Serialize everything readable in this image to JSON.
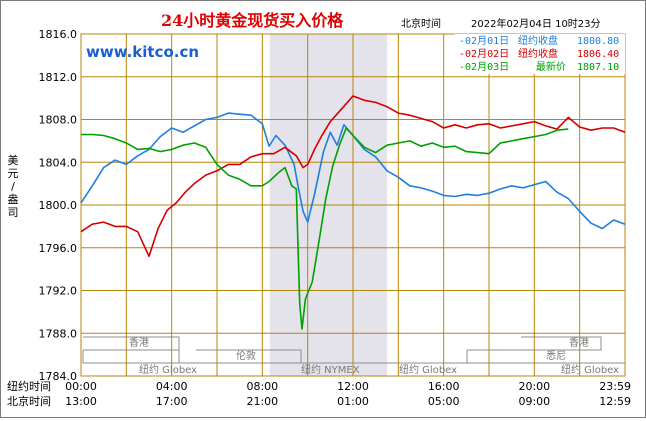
{
  "header": {
    "title": "24小时黄金现货买入价格",
    "beijing_time_label": "北京时间",
    "datetime": "2022年02月04日 10时23分"
  },
  "watermark": "www.kitco.cn",
  "y_axis_unit": [
    "美",
    "元",
    "/",
    "盎",
    "司"
  ],
  "colors": {
    "series_blue": "#1e7fe0",
    "series_red": "#d40000",
    "series_green": "#00a000",
    "grid": "#b8860b",
    "title": "#e00000",
    "nymex_band": "#e4e2ea",
    "market_lines": "#8c8c8c"
  },
  "legend": [
    {
      "date": "02月01日",
      "label": "纽约收盘",
      "value": "1800.80"
    },
    {
      "date": "02月02日",
      "label": "纽约收盘",
      "value": "1806.40"
    },
    {
      "date": "02月03日",
      "label": "最新价",
      "value": "1807.10"
    }
  ],
  "markets": [
    {
      "name": "香港"
    },
    {
      "name": "纽约 Globex"
    },
    {
      "name": "伦敦"
    },
    {
      "name": "纽约 NYMEX"
    },
    {
      "name": "纽约 Globex"
    },
    {
      "name": "香港"
    },
    {
      "name": "悉尼"
    },
    {
      "name": "纽约 Globex"
    }
  ],
  "time_rows": [
    {
      "label": "纽约时间",
      "ticks": [
        "00:00",
        "04:00",
        "08:00",
        "12:00",
        "16:00",
        "20:00",
        "23:59"
      ]
    },
    {
      "label": "北京时间",
      "ticks": [
        "13:00",
        "17:00",
        "21:00",
        "01:00",
        "05:00",
        "09:00",
        "12:59"
      ]
    }
  ],
  "chart_data": {
    "type": "line",
    "title": "24小时黄金现货买入价格",
    "ylabel": "美元/盎司",
    "ylim": [
      1784,
      1816
    ],
    "y_ticks": [
      1784,
      1788,
      1792,
      1796,
      1800,
      1804,
      1808,
      1812,
      1816
    ],
    "y_tick_labels": [
      "1784.0",
      "1788.0",
      "1792.0",
      "1796.0",
      "1800.0",
      "1804.0",
      "1808.0",
      "1812.0",
      "1816.0"
    ],
    "x_unit": "hours since 00:00 New York time",
    "xlim": [
      0,
      24
    ],
    "grid": true,
    "legend_position": "top-right",
    "nymex_session_hours": [
      8.33,
      13.5
    ],
    "series": [
      {
        "name": "02月01日 纽约收盘 1800.80",
        "color": "#1e7fe0",
        "points": [
          [
            0,
            1800.2
          ],
          [
            0.5,
            1801.8
          ],
          [
            1,
            1803.5
          ],
          [
            1.5,
            1804.2
          ],
          [
            2,
            1803.8
          ],
          [
            2.5,
            1804.6
          ],
          [
            3,
            1805.2
          ],
          [
            3.5,
            1806.4
          ],
          [
            4,
            1807.2
          ],
          [
            4.5,
            1806.8
          ],
          [
            5,
            1807.4
          ],
          [
            5.5,
            1808
          ],
          [
            6,
            1808.2
          ],
          [
            6.5,
            1808.6
          ],
          [
            7,
            1808.5
          ],
          [
            7.5,
            1808.4
          ],
          [
            8,
            1807.6
          ],
          [
            8.3,
            1805.5
          ],
          [
            8.6,
            1806.5
          ],
          [
            9,
            1805.6
          ],
          [
            9.4,
            1803.8
          ],
          [
            9.6,
            1801.5
          ],
          [
            9.8,
            1799.4
          ],
          [
            10,
            1798.4
          ],
          [
            10.3,
            1801
          ],
          [
            10.7,
            1805
          ],
          [
            11,
            1806.8
          ],
          [
            11.3,
            1805.6
          ],
          [
            11.6,
            1807.5
          ],
          [
            12,
            1806.5
          ],
          [
            12.5,
            1805.2
          ],
          [
            13,
            1804.5
          ],
          [
            13.5,
            1803.2
          ],
          [
            14,
            1802.6
          ],
          [
            14.5,
            1801.8
          ],
          [
            15,
            1801.6
          ],
          [
            15.5,
            1801.3
          ],
          [
            16,
            1800.9
          ],
          [
            16.5,
            1800.8
          ],
          [
            17,
            1801
          ],
          [
            17.5,
            1800.9
          ],
          [
            18,
            1801.1
          ],
          [
            18.5,
            1801.5
          ],
          [
            19,
            1801.8
          ],
          [
            19.5,
            1801.6
          ],
          [
            20,
            1801.9
          ],
          [
            20.5,
            1802.2
          ],
          [
            21,
            1801.2
          ],
          [
            21.5,
            1800.6
          ],
          [
            22,
            1799.4
          ],
          [
            22.5,
            1798.3
          ],
          [
            23,
            1797.8
          ],
          [
            23.5,
            1798.6
          ],
          [
            24,
            1798.2
          ]
        ]
      },
      {
        "name": "02月02日 纽约收盘 1806.40",
        "color": "#d40000",
        "points": [
          [
            0,
            1797.5
          ],
          [
            0.5,
            1798.2
          ],
          [
            1,
            1798.4
          ],
          [
            1.5,
            1798
          ],
          [
            2,
            1798
          ],
          [
            2.5,
            1797.5
          ],
          [
            3,
            1795.2
          ],
          [
            3.4,
            1797.8
          ],
          [
            3.8,
            1799.5
          ],
          [
            4.2,
            1800.2
          ],
          [
            4.6,
            1801.2
          ],
          [
            5,
            1802
          ],
          [
            5.5,
            1802.8
          ],
          [
            6,
            1803.2
          ],
          [
            6.5,
            1803.8
          ],
          [
            7,
            1803.8
          ],
          [
            7.5,
            1804.5
          ],
          [
            8,
            1804.8
          ],
          [
            8.5,
            1804.8
          ],
          [
            9,
            1805.4
          ],
          [
            9.5,
            1804.6
          ],
          [
            9.8,
            1803.5
          ],
          [
            10,
            1803.8
          ],
          [
            10.3,
            1805.2
          ],
          [
            10.6,
            1806.4
          ],
          [
            11,
            1807.8
          ],
          [
            11.5,
            1809
          ],
          [
            12,
            1810.2
          ],
          [
            12.5,
            1809.8
          ],
          [
            13,
            1809.6
          ],
          [
            13.5,
            1809.2
          ],
          [
            14,
            1808.6
          ],
          [
            14.5,
            1808.4
          ],
          [
            15,
            1808.1
          ],
          [
            15.5,
            1807.8
          ],
          [
            16,
            1807.2
          ],
          [
            16.5,
            1807.5
          ],
          [
            17,
            1807.2
          ],
          [
            17.5,
            1807.5
          ],
          [
            18,
            1807.6
          ],
          [
            18.5,
            1807.2
          ],
          [
            19,
            1807.4
          ],
          [
            19.5,
            1807.6
          ],
          [
            20,
            1807.8
          ],
          [
            20.5,
            1807.4
          ],
          [
            21,
            1807.1
          ],
          [
            21.5,
            1808.2
          ],
          [
            22,
            1807.3
          ],
          [
            22.5,
            1807
          ],
          [
            23,
            1807.2
          ],
          [
            23.5,
            1807.2
          ],
          [
            24,
            1806.8
          ]
        ]
      },
      {
        "name": "02月03日 最新价 1807.10",
        "color": "#00a000",
        "points": [
          [
            0,
            1806.6
          ],
          [
            0.5,
            1806.6
          ],
          [
            1,
            1806.5
          ],
          [
            1.5,
            1806.2
          ],
          [
            2,
            1805.8
          ],
          [
            2.5,
            1805.2
          ],
          [
            3,
            1805.3
          ],
          [
            3.5,
            1805
          ],
          [
            4,
            1805.2
          ],
          [
            4.5,
            1805.6
          ],
          [
            5,
            1805.8
          ],
          [
            5.5,
            1805.4
          ],
          [
            6,
            1803.8
          ],
          [
            6.5,
            1802.8
          ],
          [
            7,
            1802.4
          ],
          [
            7.5,
            1801.8
          ],
          [
            8,
            1801.8
          ],
          [
            8.3,
            1802.2
          ],
          [
            8.7,
            1803
          ],
          [
            9,
            1803.5
          ],
          [
            9.3,
            1801.8
          ],
          [
            9.5,
            1801.5
          ],
          [
            9.65,
            1790.8
          ],
          [
            9.75,
            1788.4
          ],
          [
            9.9,
            1791.2
          ],
          [
            10.2,
            1792.8
          ],
          [
            10.5,
            1796.6
          ],
          [
            10.8,
            1800.6
          ],
          [
            11.1,
            1803.6
          ],
          [
            11.4,
            1805.6
          ],
          [
            11.7,
            1807.2
          ],
          [
            12,
            1806.5
          ],
          [
            12.5,
            1805.4
          ],
          [
            13,
            1804.9
          ],
          [
            13.5,
            1805.6
          ],
          [
            14,
            1805.8
          ],
          [
            14.5,
            1806
          ],
          [
            15,
            1805.5
          ],
          [
            15.5,
            1805.8
          ],
          [
            16,
            1805.4
          ],
          [
            16.5,
            1805.5
          ],
          [
            17,
            1805
          ],
          [
            17.5,
            1804.9
          ],
          [
            18,
            1804.8
          ],
          [
            18.5,
            1805.8
          ],
          [
            19,
            1806
          ],
          [
            19.5,
            1806.2
          ],
          [
            20,
            1806.4
          ],
          [
            20.5,
            1806.6
          ],
          [
            21,
            1807
          ],
          [
            21.5,
            1807.1
          ]
        ]
      }
    ]
  }
}
